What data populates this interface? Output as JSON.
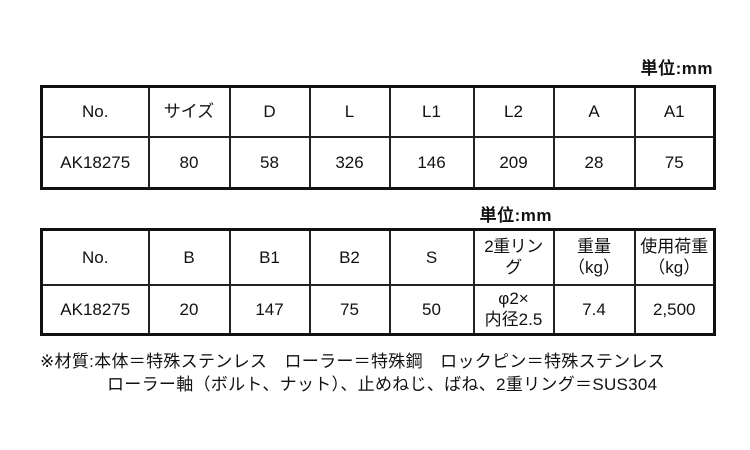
{
  "table1": {
    "unit_label": "単位:mm",
    "headers": [
      "No.",
      "サイズ",
      "D",
      "L",
      "L1",
      "L2",
      "A",
      "A1"
    ],
    "row": [
      "AK18275",
      "80",
      "58",
      "326",
      "146",
      "209",
      "28",
      "75"
    ]
  },
  "table2": {
    "unit_label": "単位:mm",
    "headers": [
      "No.",
      "B",
      "B1",
      "B2",
      "S",
      "2重リング",
      "重量\n（kg）",
      "使用荷重\n（kg）"
    ],
    "row": [
      "AK18275",
      "20",
      "147",
      "75",
      "50",
      "φ2×\n内径2.5",
      "7.4",
      "2,500"
    ]
  },
  "notes": {
    "line1": "※材質:本体＝特殊ステンレス　ローラー＝特殊鋼　ロックピン＝特殊ステンレス",
    "line2": "ローラー軸（ボルト、ナット）、止めねじ、ばね、2重リング＝SUS304"
  },
  "colors": {
    "background": "#ffffff",
    "text": "#111111",
    "border": "#222222"
  }
}
